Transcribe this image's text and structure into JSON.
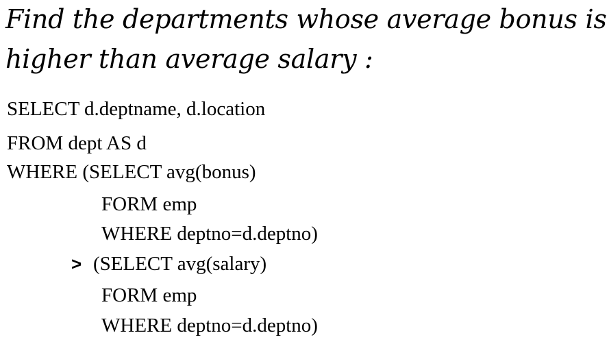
{
  "title": {
    "line1": "Find the departments whose average bonus is",
    "line2": "higher than average salary :"
  },
  "query": {
    "lines": [
      "SELECT d.deptname, d.location",
      "FROM dept AS d",
      "WHERE (SELECT avg(bonus)",
      "FORM emp",
      "WHERE deptno=d.deptno)",
      "(SELECT avg(salary)",
      "FORM emp",
      "WHERE deptno=d.deptno)"
    ],
    "operator": ">"
  }
}
